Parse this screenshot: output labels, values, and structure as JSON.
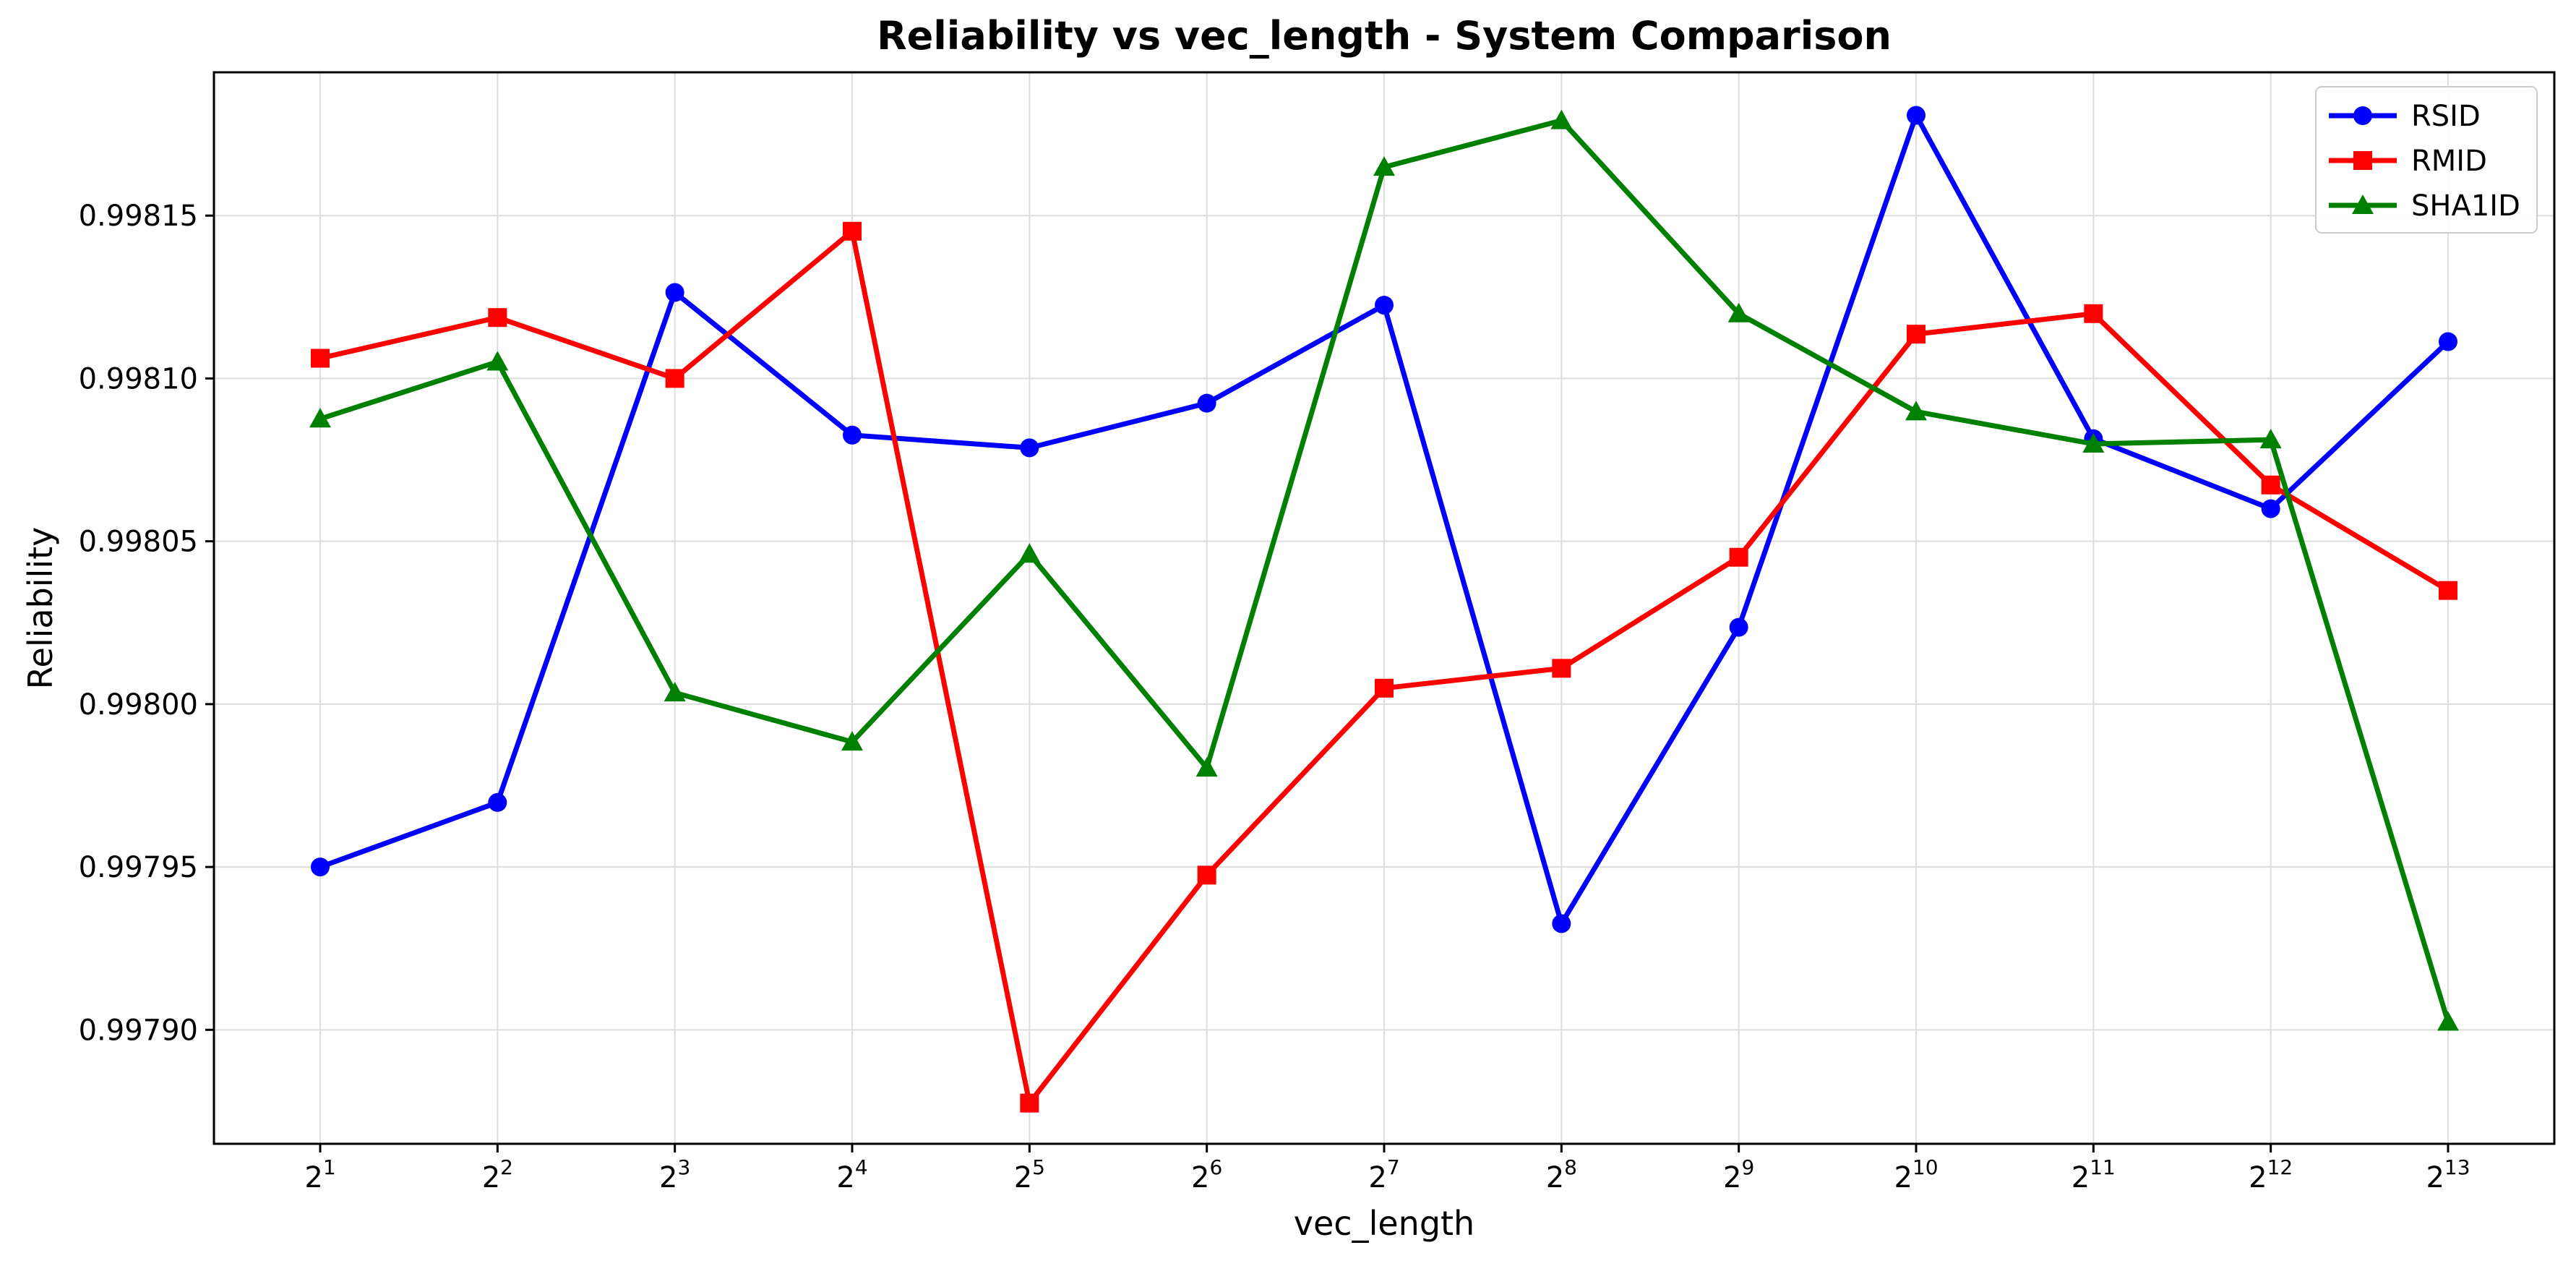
{
  "chart_data": {
    "type": "line",
    "title": "Reliability vs vec_length - System Comparison",
    "xlabel": "vec_length",
    "ylabel": "Reliability",
    "x": [
      2,
      4,
      8,
      16,
      32,
      64,
      128,
      256,
      512,
      1024,
      2048,
      4096,
      8192
    ],
    "x_scale": "log2",
    "x_ticks": [
      {
        "base": "2",
        "exp": "1"
      },
      {
        "base": "2",
        "exp": "2"
      },
      {
        "base": "2",
        "exp": "3"
      },
      {
        "base": "2",
        "exp": "4"
      },
      {
        "base": "2",
        "exp": "5"
      },
      {
        "base": "2",
        "exp": "6"
      },
      {
        "base": "2",
        "exp": "7"
      },
      {
        "base": "2",
        "exp": "8"
      },
      {
        "base": "2",
        "exp": "9"
      },
      {
        "base": "2",
        "exp": "10"
      },
      {
        "base": "2",
        "exp": "11"
      },
      {
        "base": "2",
        "exp": "12"
      },
      {
        "base": "2",
        "exp": "13"
      }
    ],
    "y_ticks": [
      0.9979,
      0.99795,
      0.998,
      0.99805,
      0.9981,
      0.99815
    ],
    "y_tick_labels": [
      "0.99790",
      "0.99795",
      "0.99800",
      "0.99805",
      "0.99810",
      "0.99815"
    ],
    "ylim": [
      0.997865,
      0.998194
    ],
    "grid": true,
    "legend_position": "top-right",
    "series": [
      {
        "name": "RSID",
        "color": "#0000ff",
        "marker": "circle",
        "values": [
          0.99795,
          0.9979698,
          0.9981264,
          0.9980826,
          0.9980787,
          0.9980924,
          0.9981225,
          0.9979326,
          0.9980236,
          0.9981808,
          0.9980815,
          0.99806,
          0.9981113
        ]
      },
      {
        "name": "RMID",
        "color": "#ff0000",
        "marker": "square",
        "values": [
          0.9981062,
          0.9981187,
          0.9981,
          0.9981452,
          0.9978775,
          0.9979475,
          0.9980049,
          0.998011,
          0.9980451,
          0.9981136,
          0.9981199,
          0.9980673,
          0.9980349
        ]
      },
      {
        "name": "SHA1ID",
        "color": "#008000",
        "marker": "triangle",
        "values": [
          0.9980876,
          0.9981051,
          0.9980035,
          0.9979884,
          0.9980461,
          0.9979804,
          0.9981649,
          0.9981792,
          0.9981199,
          0.9980898,
          0.9980799,
          0.9980812,
          0.9979024
        ]
      }
    ]
  }
}
